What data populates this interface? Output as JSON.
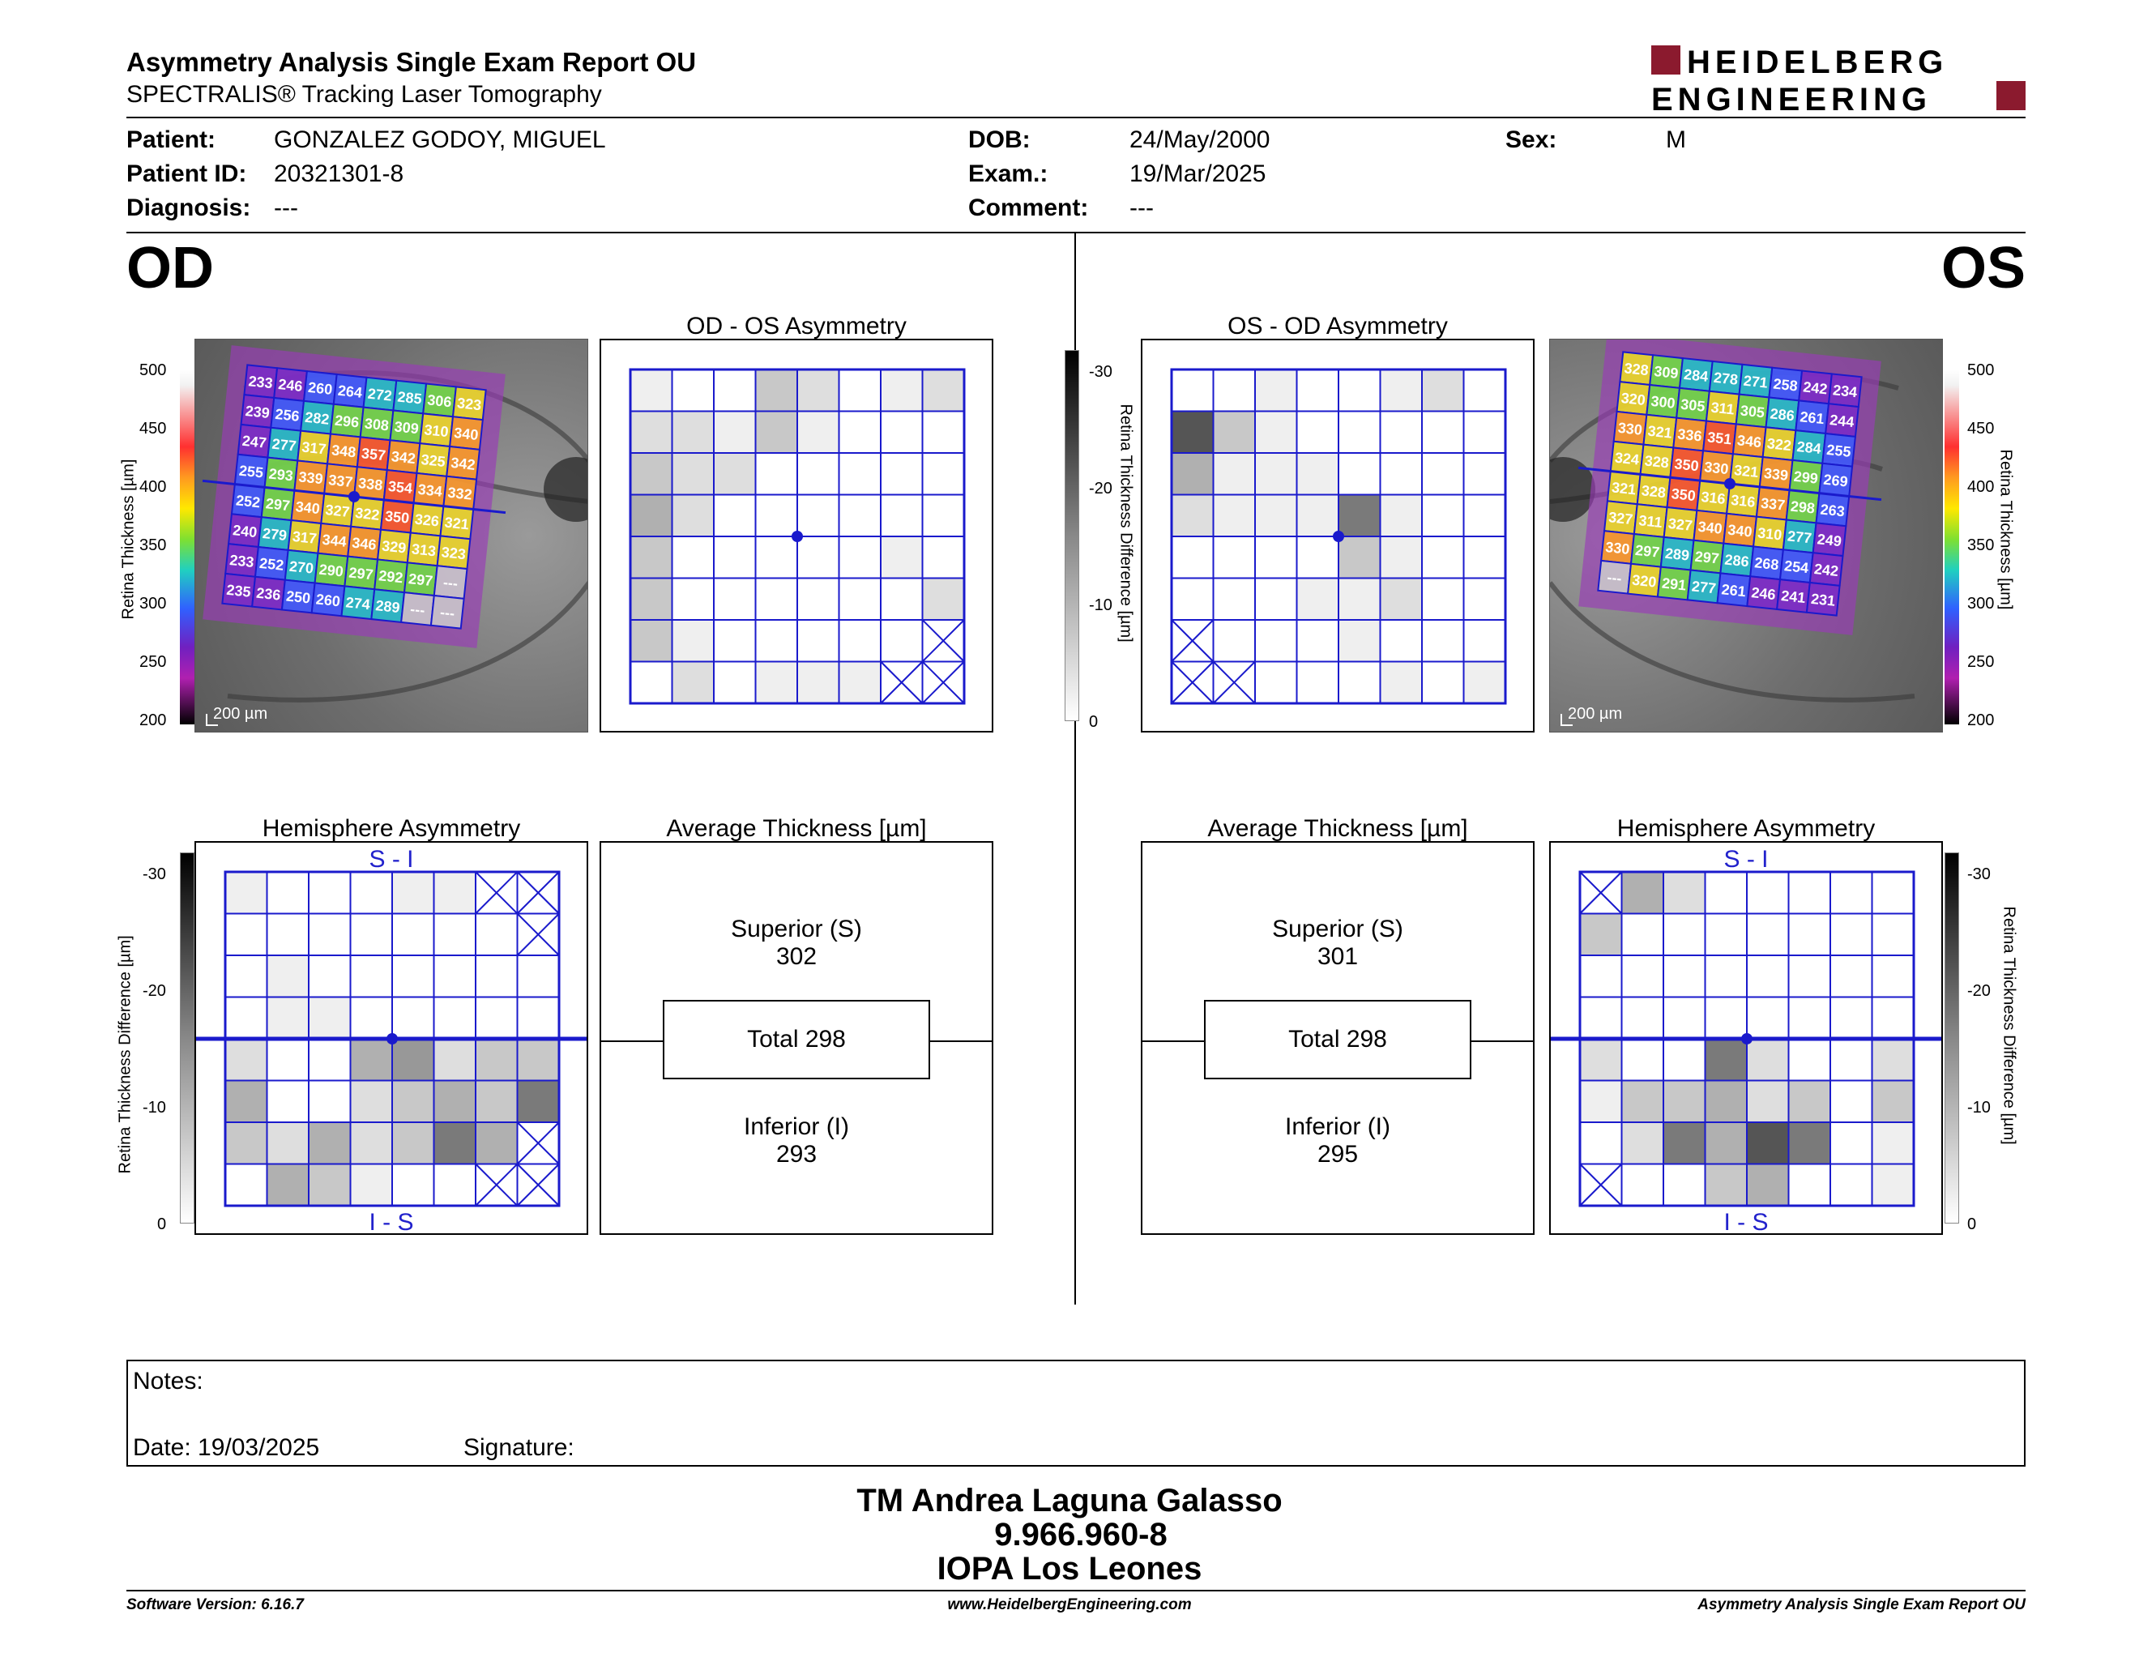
{
  "header": {
    "title": "Asymmetry Analysis Single Exam Report OU",
    "subtitle": "SPECTRALIS® Tracking Laser Tomography",
    "logo_line1": "HEIDELBERG",
    "logo_line2": "ENGINEERING",
    "logo_color": "#8b1a2e"
  },
  "patient": {
    "patient_label": "Patient:",
    "patient_value": "GONZALEZ GODOY, MIGUEL",
    "id_label": "Patient ID:",
    "id_value": "20321301-8",
    "diagnosis_label": "Diagnosis:",
    "diagnosis_value": "---",
    "dob_label": "DOB:",
    "dob_value": "24/May/2000",
    "exam_label": "Exam.:",
    "exam_value": "19/Mar/2025",
    "comment_label": "Comment:",
    "comment_value": "---",
    "sex_label": "Sex:",
    "sex_value": "M"
  },
  "od": {
    "eye_label": "OD",
    "asym_title": "OD - OS Asymmetry",
    "hemi_title": "Hemisphere Asymmetry",
    "avg_title": "Average Thickness [µm]",
    "superior_label": "Superior (S)",
    "superior_value": "302",
    "total_label": "Total 298",
    "inferior_label": "Inferior (I)",
    "inferior_value": "293",
    "scale_bar": "200 µm",
    "hemi_top": "S - I",
    "hemi_bottom": "I - S",
    "thickness_grid": [
      [
        "233",
        "246",
        "260",
        "264",
        "272",
        "285",
        "306",
        "323"
      ],
      [
        "239",
        "256",
        "282",
        "296",
        "308",
        "309",
        "310",
        "340"
      ],
      [
        "247",
        "277",
        "317",
        "348",
        "357",
        "342",
        "325",
        "342"
      ],
      [
        "255",
        "293",
        "339",
        "337",
        "338",
        "354",
        "334",
        "332"
      ],
      [
        "252",
        "297",
        "340",
        "327",
        "322",
        "350",
        "326",
        "321"
      ],
      [
        "240",
        "279",
        "317",
        "344",
        "346",
        "329",
        "313",
        "323"
      ],
      [
        "233",
        "252",
        "270",
        "290",
        "297",
        "292",
        "297",
        "---"
      ],
      [
        "235",
        "236",
        "250",
        "260",
        "274",
        "289",
        "---",
        "---"
      ]
    ],
    "asym_grid": [
      [
        1,
        0,
        0,
        3,
        2,
        0,
        1,
        2
      ],
      [
        2,
        2,
        1,
        3,
        1,
        0,
        0,
        0
      ],
      [
        3,
        2,
        2,
        0,
        0,
        0,
        0,
        0
      ],
      [
        4,
        2,
        0,
        0,
        0,
        0,
        0,
        0
      ],
      [
        3,
        0,
        0,
        0,
        0,
        0,
        1,
        0
      ],
      [
        3,
        0,
        0,
        0,
        0,
        0,
        0,
        2
      ],
      [
        3,
        1,
        0,
        0,
        0,
        0,
        0,
        -1
      ],
      [
        0,
        2,
        0,
        1,
        1,
        1,
        -1,
        -1
      ]
    ],
    "hemi_grid": [
      [
        1,
        0,
        0,
        0,
        1,
        1,
        -1,
        -1
      ],
      [
        0,
        0,
        0,
        0,
        0,
        0,
        0,
        -1
      ],
      [
        0,
        1,
        0,
        0,
        0,
        0,
        0,
        0
      ],
      [
        0,
        1,
        1,
        0,
        0,
        0,
        0,
        0
      ],
      [
        2,
        0,
        0,
        4,
        5,
        2,
        3,
        3
      ],
      [
        4,
        0,
        0,
        2,
        3,
        4,
        3,
        6
      ],
      [
        3,
        2,
        4,
        2,
        3,
        6,
        4,
        -1
      ],
      [
        0,
        4,
        3,
        1,
        0,
        0,
        -1,
        -1
      ]
    ]
  },
  "os": {
    "eye_label": "OS",
    "asym_title": "OS - OD Asymmetry",
    "hemi_title": "Hemisphere Asymmetry",
    "avg_title": "Average Thickness [µm]",
    "superior_label": "Superior (S)",
    "superior_value": "301",
    "total_label": "Total 298",
    "inferior_label": "Inferior (I)",
    "inferior_value": "295",
    "scale_bar": "200 µm",
    "hemi_top": "S - I",
    "hemi_bottom": "I - S",
    "thickness_grid": [
      [
        "328",
        "309",
        "284",
        "278",
        "271",
        "258",
        "242",
        "234"
      ],
      [
        "320",
        "300",
        "305",
        "311",
        "305",
        "286",
        "261",
        "244"
      ],
      [
        "330",
        "321",
        "336",
        "351",
        "346",
        "322",
        "284",
        "255"
      ],
      [
        "324",
        "328",
        "350",
        "330",
        "321",
        "339",
        "299",
        "269"
      ],
      [
        "321",
        "328",
        "350",
        "316",
        "316",
        "337",
        "298",
        "263"
      ],
      [
        "327",
        "311",
        "327",
        "340",
        "340",
        "310",
        "277",
        "249"
      ],
      [
        "330",
        "297",
        "289",
        "297",
        "286",
        "268",
        "254",
        "242"
      ],
      [
        "---",
        "320",
        "291",
        "277",
        "261",
        "246",
        "241",
        "231"
      ]
    ],
    "asym_grid": [
      [
        0,
        0,
        1,
        0,
        0,
        1,
        2,
        0
      ],
      [
        7,
        3,
        1,
        0,
        0,
        0,
        0,
        0
      ],
      [
        4,
        1,
        1,
        1,
        0,
        0,
        0,
        0
      ],
      [
        2,
        1,
        1,
        1,
        6,
        1,
        0,
        0
      ],
      [
        0,
        0,
        0,
        0,
        3,
        1,
        0,
        0
      ],
      [
        0,
        0,
        0,
        1,
        1,
        2,
        0,
        0
      ],
      [
        -1,
        0,
        0,
        0,
        1,
        0,
        0,
        0
      ],
      [
        -1,
        -1,
        0,
        0,
        0,
        1,
        0,
        1
      ]
    ],
    "hemi_grid": [
      [
        -1,
        4,
        2,
        0,
        0,
        0,
        0,
        0
      ],
      [
        3,
        0,
        0,
        0,
        0,
        0,
        0,
        0
      ],
      [
        0,
        0,
        0,
        0,
        0,
        0,
        0,
        0
      ],
      [
        0,
        0,
        0,
        0,
        0,
        0,
        0,
        0
      ],
      [
        2,
        0,
        0,
        6,
        2,
        0,
        0,
        2
      ],
      [
        1,
        3,
        3,
        4,
        2,
        3,
        0,
        3
      ],
      [
        0,
        2,
        6,
        4,
        7,
        6,
        0,
        1
      ],
      [
        -1,
        0,
        0,
        3,
        4,
        0,
        0,
        1
      ]
    ]
  },
  "scales": {
    "thickness_label": "Retina Thickness [µm]",
    "thickness_ticks": [
      "500",
      "450",
      "400",
      "350",
      "300",
      "250",
      "200"
    ],
    "diff_label": "Retina Thickness Difference [µm]",
    "diff_ticks": [
      "-30",
      "-20",
      "-10",
      "0"
    ]
  },
  "notes": {
    "notes_label": "Notes:",
    "date_label": "Date: 19/03/2025",
    "signature_label": "Signature:"
  },
  "signoff": {
    "name": "TM Andrea Laguna Galasso",
    "rut": "9.966.960-8",
    "clinic": "IOPA Los Leones"
  },
  "footer": {
    "software": "Software Version: 6.16.7",
    "website": "www.HeidelbergEngineering.com",
    "report": "Asymmetry Analysis Single Exam Report OU"
  }
}
